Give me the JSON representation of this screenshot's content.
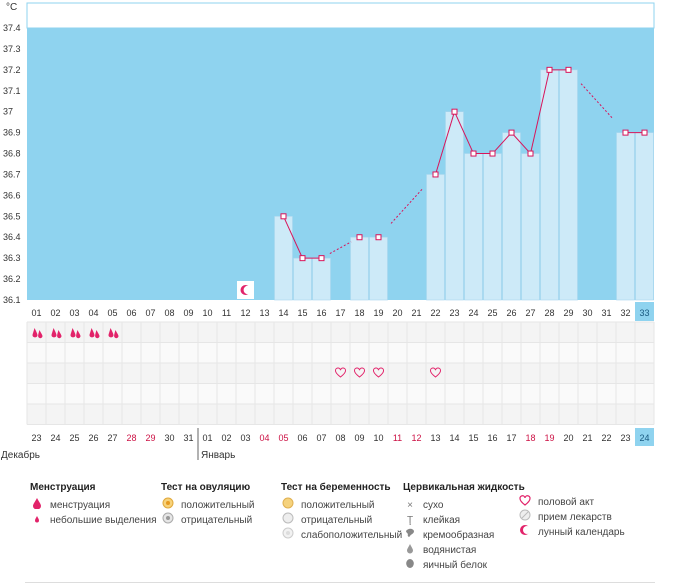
{
  "chart_data": {
    "type": "bar+line",
    "unit_label": "°C",
    "ylim": [
      36.1,
      37.4
    ],
    "y_ticks": [
      "37.4",
      "37.3",
      "37.2",
      "37.1",
      "37",
      "36.9",
      "36.8",
      "36.7",
      "36.6",
      "36.5",
      "36.4",
      "36.3",
      "36.2",
      "36.1"
    ],
    "y_tick_values": [
      37.4,
      37.3,
      37.2,
      37.1,
      37.0,
      36.9,
      36.8,
      36.7,
      36.6,
      36.5,
      36.4,
      36.3,
      36.2,
      36.1
    ],
    "cycle_days": [
      "01",
      "02",
      "03",
      "04",
      "05",
      "06",
      "07",
      "08",
      "09",
      "10",
      "11",
      "12",
      "13",
      "14",
      "15",
      "16",
      "17",
      "18",
      "19",
      "20",
      "21",
      "22",
      "23",
      "24",
      "25",
      "26",
      "27",
      "28",
      "29",
      "30",
      "31",
      "32",
      "33"
    ],
    "current_day_index": 32,
    "temperatures": [
      null,
      null,
      null,
      null,
      null,
      null,
      null,
      null,
      null,
      null,
      null,
      null,
      null,
      36.5,
      36.3,
      36.3,
      null,
      36.4,
      36.4,
      null,
      null,
      36.7,
      37.0,
      36.8,
      36.8,
      36.9,
      36.8,
      37.2,
      37.2,
      null,
      null,
      36.9,
      36.9
    ],
    "line_segments": [
      [
        13,
        14
      ],
      [
        14,
        15
      ],
      [
        21,
        22
      ],
      [
        22,
        23
      ],
      [
        23,
        24
      ],
      [
        24,
        25
      ],
      [
        25,
        26
      ],
      [
        26,
        27
      ],
      [
        27,
        28
      ],
      [
        31,
        32
      ]
    ],
    "dashed_segments": [
      [
        15,
        17
      ],
      [
        18,
        21
      ],
      [
        28,
        31
      ]
    ],
    "moon_day_index": 11,
    "menstruation_days": [
      0,
      1,
      2,
      3,
      4
    ],
    "intercourse_days": [
      16,
      17,
      18,
      21
    ],
    "dates": [
      {
        "label": "23",
        "color": "#333333"
      },
      {
        "label": "24",
        "color": "#333333"
      },
      {
        "label": "25",
        "color": "#333333"
      },
      {
        "label": "26",
        "color": "#333333"
      },
      {
        "label": "27",
        "color": "#333333"
      },
      {
        "label": "28",
        "color": "#cc1144"
      },
      {
        "label": "29",
        "color": "#cc1144"
      },
      {
        "label": "30",
        "color": "#333333"
      },
      {
        "label": "31",
        "color": "#333333"
      },
      {
        "label": "01",
        "color": "#333333"
      },
      {
        "label": "02",
        "color": "#333333"
      },
      {
        "label": "03",
        "color": "#333333"
      },
      {
        "label": "04",
        "color": "#cc1144"
      },
      {
        "label": "05",
        "color": "#cc1144"
      },
      {
        "label": "06",
        "color": "#333333"
      },
      {
        "label": "07",
        "color": "#333333"
      },
      {
        "label": "08",
        "color": "#333333"
      },
      {
        "label": "09",
        "color": "#333333"
      },
      {
        "label": "10",
        "color": "#333333"
      },
      {
        "label": "11",
        "color": "#cc1144"
      },
      {
        "label": "12",
        "color": "#cc1144"
      },
      {
        "label": "13",
        "color": "#333333"
      },
      {
        "label": "14",
        "color": "#333333"
      },
      {
        "label": "15",
        "color": "#333333"
      },
      {
        "label": "16",
        "color": "#333333"
      },
      {
        "label": "17",
        "color": "#333333"
      },
      {
        "label": "18",
        "color": "#cc1144"
      },
      {
        "label": "19",
        "color": "#cc1144"
      },
      {
        "label": "20",
        "color": "#333333"
      },
      {
        "label": "21",
        "color": "#333333"
      },
      {
        "label": "22",
        "color": "#333333"
      },
      {
        "label": "23",
        "color": "#333333"
      },
      {
        "label": "24",
        "color": "#333333"
      }
    ],
    "month_labels": [
      {
        "label": "Декабрь",
        "start_index": 0
      },
      {
        "label": "Январь",
        "start_index": 9
      }
    ]
  },
  "colors": {
    "plot_bg": "#8fd3ef",
    "bar_fill": "#cdeaf8",
    "bar_stroke": "#a9d6ee",
    "line": "#d8145a",
    "today_bg": "#8fd3ef",
    "accent": "#e2236a"
  },
  "legend": {
    "menstruation": {
      "title": "Менструация",
      "items": [
        {
          "icon": "drop-large-icon",
          "label": "менструация"
        },
        {
          "icon": "drop-small-icon",
          "label": "небольшие выделения"
        }
      ]
    },
    "ovulation": {
      "title": "Тест на овуляцию",
      "items": [
        {
          "icon": "test-positive-icon",
          "label": "положительный"
        },
        {
          "icon": "test-negative-icon",
          "label": "отрицательный"
        }
      ]
    },
    "pregnancy": {
      "title": "Тест на беременность",
      "items": [
        {
          "icon": "preg-positive-icon",
          "label": "положительный"
        },
        {
          "icon": "preg-negative-icon",
          "label": "отрицательный"
        },
        {
          "icon": "preg-weak-icon",
          "label": "слабоположительный"
        }
      ]
    },
    "cervical": {
      "title": "Цервикальная жидкость",
      "items": [
        {
          "icon": "dry-icon",
          "label": "сухо"
        },
        {
          "icon": "sticky-icon",
          "label": "клейкая"
        },
        {
          "icon": "creamy-icon",
          "label": "кремообразная"
        },
        {
          "icon": "watery-icon",
          "label": "водянистая"
        },
        {
          "icon": "eggwhite-icon",
          "label": "яичный белок"
        }
      ]
    },
    "other": {
      "items": [
        {
          "icon": "heart-icon",
          "label": "половой акт"
        },
        {
          "icon": "pill-icon",
          "label": "прием лекарств"
        },
        {
          "icon": "moon-icon",
          "label": "лунный календарь"
        }
      ]
    }
  }
}
